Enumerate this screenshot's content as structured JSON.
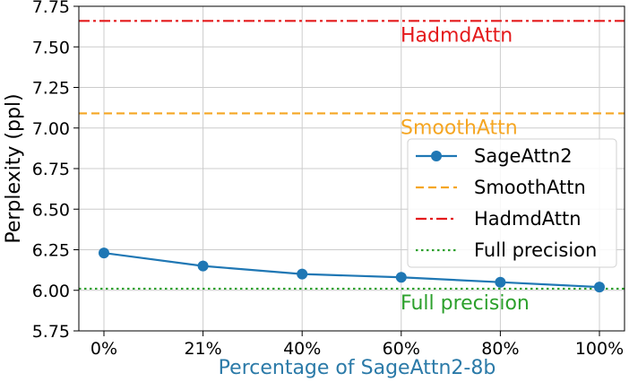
{
  "chart_data": {
    "type": "line",
    "title": "",
    "xlabel": "Percentage of SageAttn2-8b",
    "ylabel": "Perplexity (ppl)",
    "categories": [
      "0%",
      "21%",
      "40%",
      "60%",
      "80%",
      "100%"
    ],
    "ylim": [
      5.75,
      7.75
    ],
    "yticks": [
      "5.75",
      "6.00",
      "6.25",
      "6.50",
      "6.75",
      "7.00",
      "7.25",
      "7.50",
      "7.75"
    ],
    "grid": true,
    "legend_position": "right",
    "series": [
      {
        "name": "SageAttn2",
        "values": [
          6.23,
          6.15,
          6.1,
          6.08,
          6.05,
          6.02
        ],
        "color": "#1f77b4",
        "style": "solid-marker"
      }
    ],
    "reference_lines": [
      {
        "name": "SmoothAttn",
        "value": 7.09,
        "color": "#f5a623",
        "style": "dashed",
        "label": "SmoothAttn"
      },
      {
        "name": "HadmdAttn",
        "value": 7.66,
        "color": "#e41a1c",
        "style": "dashdot",
        "label": "HadmdAttn"
      },
      {
        "name": "Full precision",
        "value": 6.01,
        "color": "#2ca02c",
        "style": "dotted",
        "label": "Full precision"
      }
    ],
    "xlabel_color": "#2b7aa8"
  }
}
